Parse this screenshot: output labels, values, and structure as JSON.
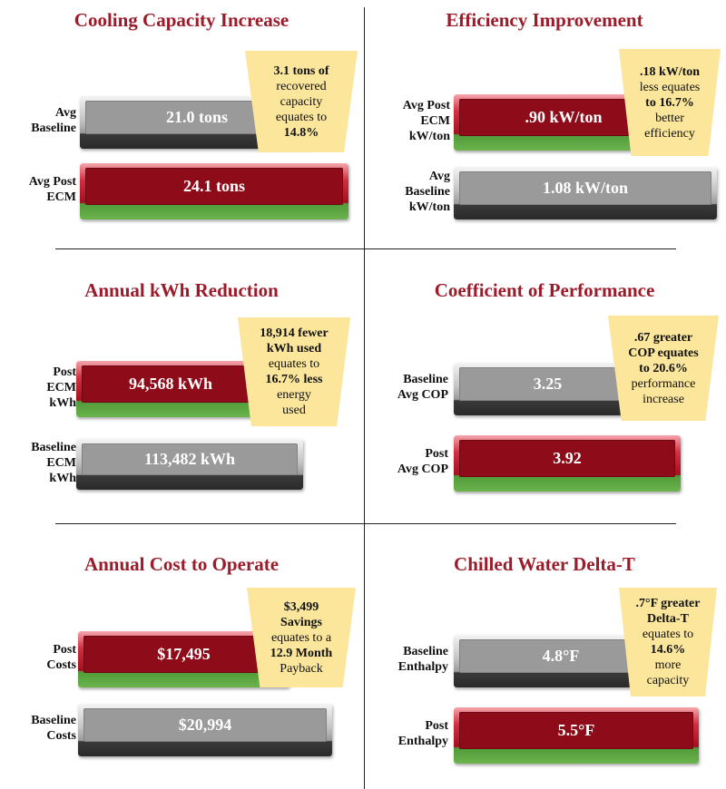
{
  "chart_data": [
    {
      "type": "bar",
      "title": "Cooling Capacity Increase",
      "categories": [
        "Avg Baseline",
        "Avg Post ECM"
      ],
      "values": [
        21.0,
        24.1
      ],
      "value_labels": [
        "21.0 tons",
        "24.1 tons"
      ],
      "colors": [
        "#9a9a9a",
        "#9b1b2a"
      ],
      "callout": [
        "3.1 tons of",
        "recovered",
        "capacity",
        "equates to",
        "14.8%"
      ]
    },
    {
      "type": "bar",
      "title": "Efficiency Improvement",
      "categories": [
        "Avg Post ECM kW/ton",
        "Avg Baseline kW/ton"
      ],
      "values": [
        0.9,
        1.08
      ],
      "value_labels": [
        ".90 kW/ton",
        "1.08 kW/ton"
      ],
      "colors": [
        "#9b1b2a",
        "#9a9a9a"
      ],
      "callout": [
        ".18 kW/ton",
        "less equates",
        "to 16.7%",
        "better",
        "efficiency"
      ]
    },
    {
      "type": "bar",
      "title": "Annual kWh Reduction",
      "categories": [
        "Post ECM kWh",
        "Baseline ECM kWh"
      ],
      "values": [
        94568,
        113482
      ],
      "value_labels": [
        "94,568 kWh",
        "113,482 kWh"
      ],
      "colors": [
        "#9b1b2a",
        "#9a9a9a"
      ],
      "callout": [
        "18,914 fewer",
        "kWh used",
        "equates to",
        "16.7% less",
        "energy",
        "used"
      ]
    },
    {
      "type": "bar",
      "title": "Coefficient of Performance",
      "categories": [
        "Baseline Avg COP",
        "Post Avg COP"
      ],
      "values": [
        3.25,
        3.92
      ],
      "value_labels": [
        "3.25",
        "3.92"
      ],
      "colors": [
        "#9a9a9a",
        "#9b1b2a"
      ],
      "callout": [
        ".67 greater",
        "COP equates",
        "to 20.6%",
        "performance",
        "increase"
      ]
    },
    {
      "type": "bar",
      "title": "Annual Cost to Operate",
      "categories": [
        "Post Costs",
        "Baseline Costs"
      ],
      "values": [
        17495,
        20994
      ],
      "value_labels": [
        "$17,495",
        "$20,994"
      ],
      "colors": [
        "#9b1b2a",
        "#9a9a9a"
      ],
      "callout": [
        "$3,499",
        "Savings",
        "equates to a",
        "12.9 Month",
        "Payback"
      ]
    },
    {
      "type": "bar",
      "title": "Chilled Water Delta-T",
      "categories": [
        "Baseline Enthalpy",
        "Post Enthalpy"
      ],
      "values": [
        4.8,
        5.5
      ],
      "value_labels": [
        "4.8°F",
        "5.5°F"
      ],
      "colors": [
        "#9a9a9a",
        "#9b1b2a"
      ],
      "callout": [
        ".7°F greater",
        "Delta-T",
        "equates to",
        "14.6%",
        "more",
        "capacity"
      ]
    }
  ],
  "row_labels": [
    [
      [
        "Avg",
        "Baseline"
      ],
      [
        "Avg Post",
        "ECM"
      ]
    ],
    [
      [
        "Avg Post",
        "ECM",
        "kW/ton"
      ],
      [
        "Avg",
        "Baseline",
        "kW/ton"
      ]
    ],
    [
      [
        "Post",
        "ECM",
        "kWh"
      ],
      [
        "Baseline",
        "ECM",
        "kWh"
      ]
    ],
    [
      [
        "Baseline",
        "Avg COP"
      ],
      [
        "Post",
        "Avg COP"
      ]
    ],
    [
      [
        "Post",
        "Costs"
      ],
      [
        "Baseline",
        "Costs"
      ]
    ],
    [
      [
        "Baseline",
        "Enthalpy"
      ],
      [
        "Post",
        "Enthalpy"
      ]
    ]
  ],
  "callout_bold": [
    [
      0,
      4
    ],
    [
      0,
      2
    ],
    [
      0,
      1,
      3
    ],
    [
      0,
      1,
      2
    ],
    [
      0,
      1,
      3
    ],
    [
      0,
      1,
      3
    ]
  ]
}
